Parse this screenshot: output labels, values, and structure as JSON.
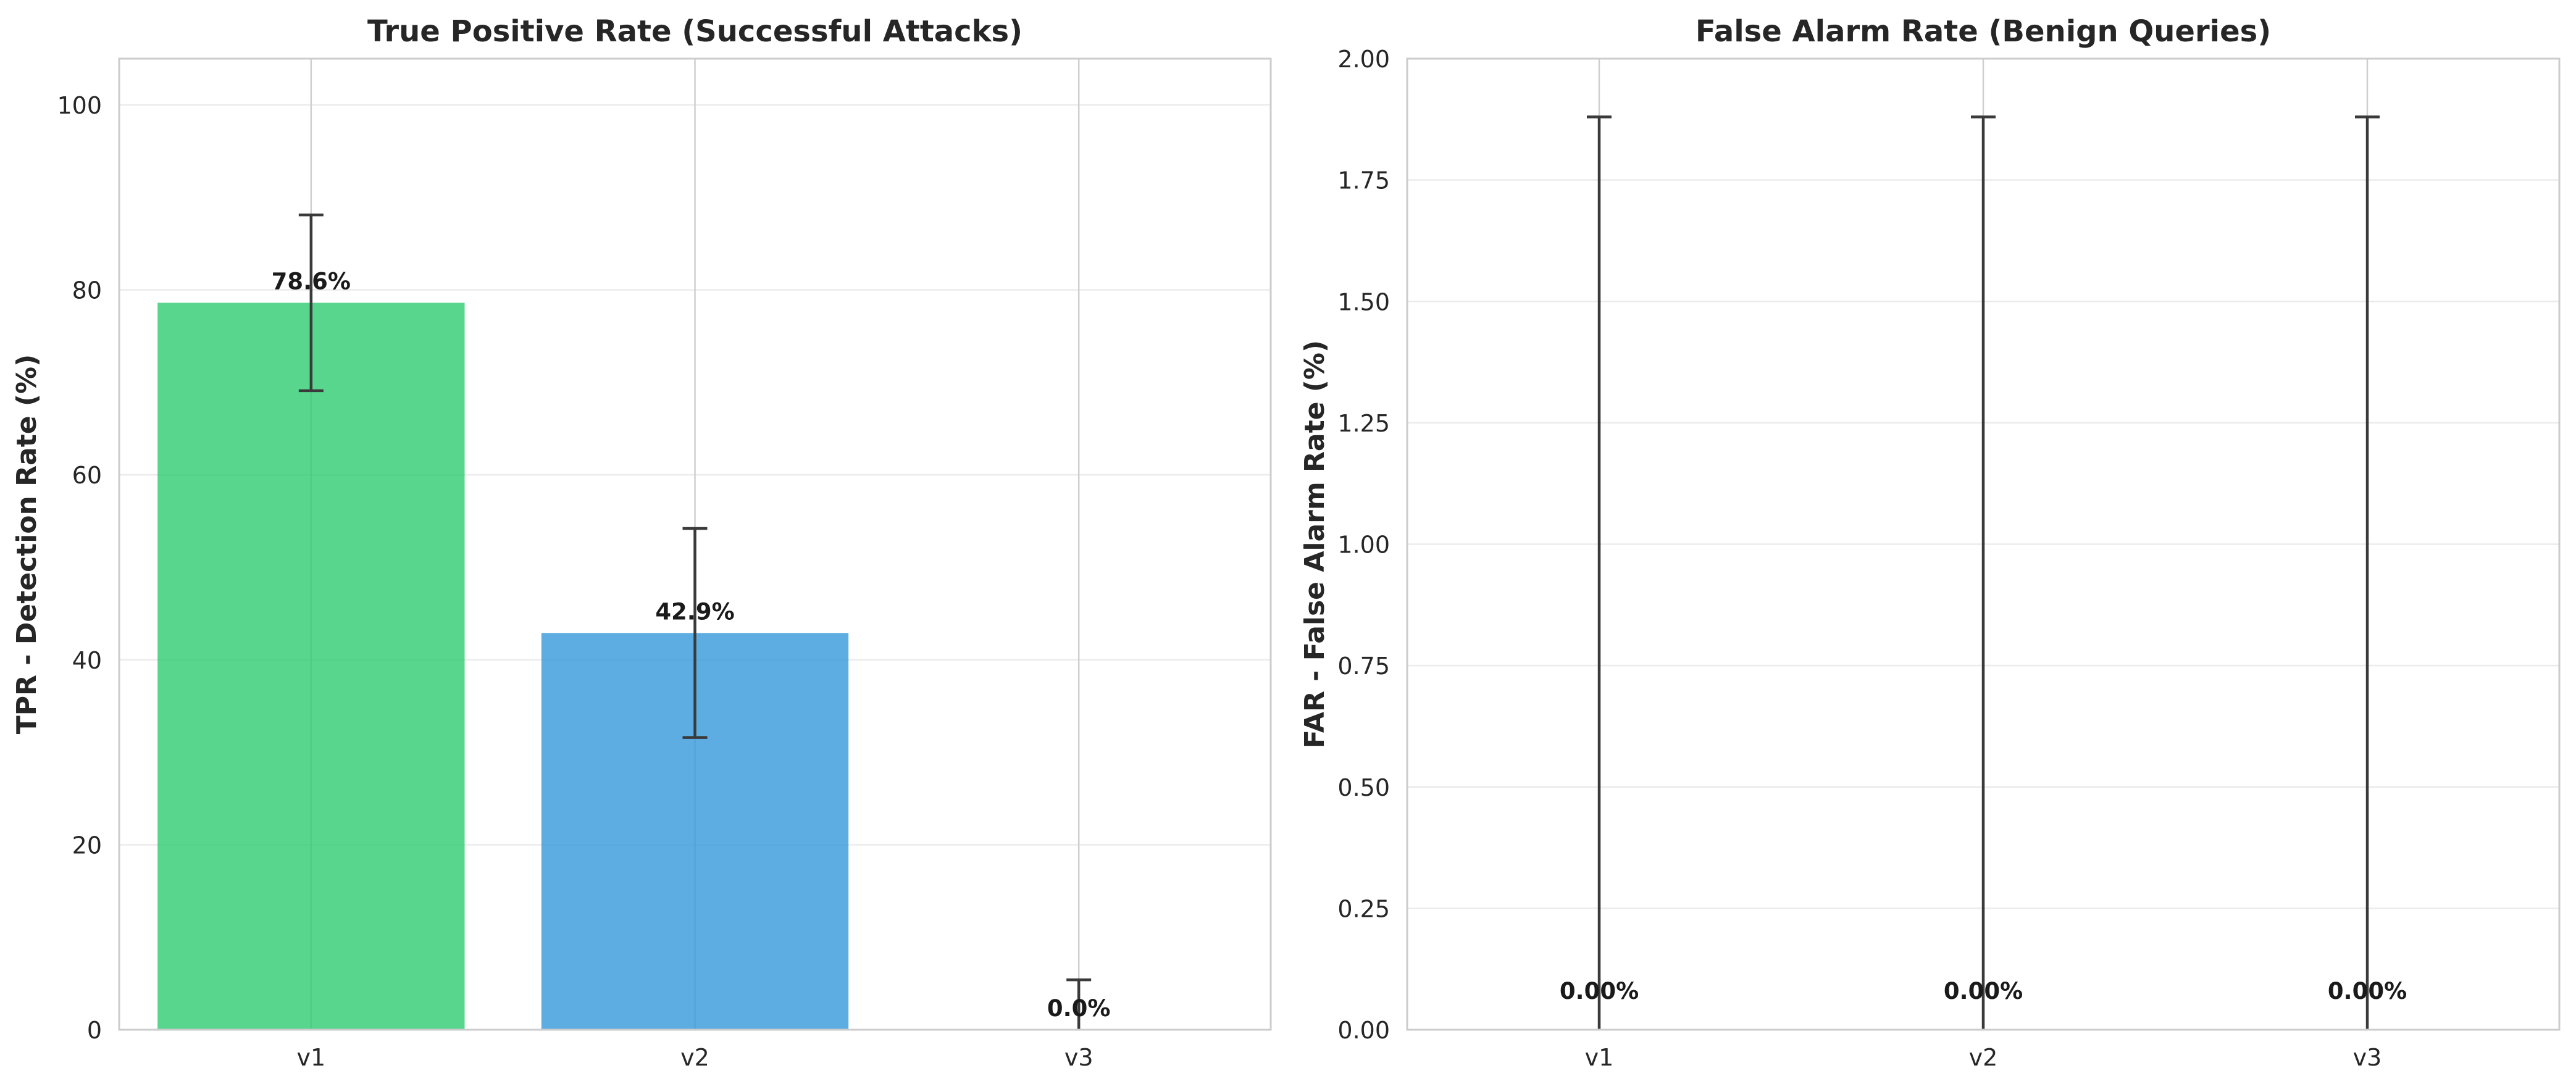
{
  "chart_data": [
    {
      "type": "bar",
      "title": "True Positive Rate (Successful Attacks)",
      "xlabel": "",
      "ylabel": "TPR - Detection Rate (%)",
      "categories": [
        "v1",
        "v2",
        "v3"
      ],
      "values": [
        78.6,
        42.9,
        0.0
      ],
      "errors": [
        9.5,
        11.3,
        5.4
      ],
      "value_labels": [
        "78.6%",
        "42.9%",
        "0.0%"
      ],
      "bar_colors": [
        "#2ecc71",
        "#3498db",
        "#e74c3c"
      ],
      "ylim": [
        0,
        105
      ],
      "yticks": [
        0,
        20,
        40,
        60,
        80,
        100
      ],
      "ytick_labels": [
        "0",
        "20",
        "40",
        "60",
        "80",
        "100"
      ],
      "grid": true
    },
    {
      "type": "bar",
      "title": "False Alarm Rate (Benign Queries)",
      "xlabel": "",
      "ylabel": "FAR - False Alarm Rate (%)",
      "categories": [
        "v1",
        "v2",
        "v3"
      ],
      "values": [
        0.0,
        0.0,
        0.0
      ],
      "errors": [
        1.88,
        1.88,
        1.88
      ],
      "value_labels": [
        "0.00%",
        "0.00%",
        "0.00%"
      ],
      "bar_colors": [
        "#2ecc71",
        "#3498db",
        "#e74c3c"
      ],
      "ylim": [
        0,
        2.0
      ],
      "yticks": [
        0,
        0.25,
        0.5,
        0.75,
        1.0,
        1.25,
        1.5,
        1.75,
        2.0
      ],
      "ytick_labels": [
        "0.00",
        "0.25",
        "0.50",
        "0.75",
        "1.00",
        "1.25",
        "1.50",
        "1.75",
        "2.00"
      ],
      "grid": true
    }
  ]
}
